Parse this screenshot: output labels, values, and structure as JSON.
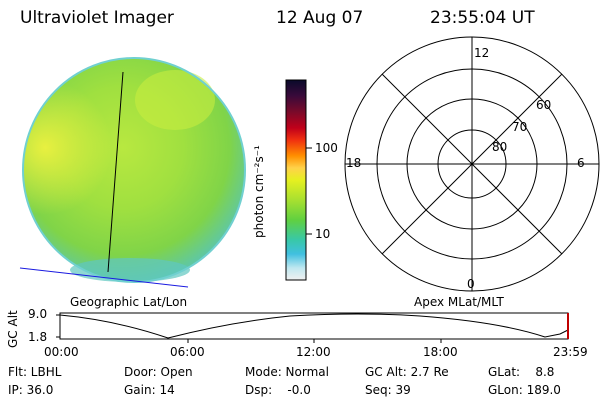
{
  "header": {
    "instrument": "Ultraviolet Imager",
    "date": "12 Aug 07",
    "time": "23:55:04 UT"
  },
  "panels": {
    "geo_label": "Geographic Lat/Lon",
    "apex_label": "Apex MLat/MLT"
  },
  "colorbar": {
    "unit_label": "photon cm⁻²s⁻¹",
    "ticks": [
      "100",
      "10"
    ],
    "colors": [
      "#0a0a2a",
      "#3a0a3a",
      "#7a0a2a",
      "#c0001a",
      "#f03010",
      "#ff9000",
      "#ffd24a",
      "#e6f020",
      "#a8e030",
      "#60d040",
      "#38c8a8",
      "#40c0e0",
      "#c0e8f0",
      "#f0f0f0"
    ]
  },
  "polar": {
    "mlt_labels": {
      "top": "12",
      "left": "18",
      "right": "6",
      "bottom": "0"
    },
    "lat_labels": [
      "60",
      "70",
      "80"
    ]
  },
  "timeline": {
    "axis_label": "GC Alt",
    "y_ticks": [
      "9.0",
      "1.8"
    ],
    "x_ticks": [
      "00:00",
      "06:00",
      "12:00",
      "18:00",
      "23:59"
    ]
  },
  "status": {
    "flt": "Flt: LBHL",
    "ip": "IP: 36.0",
    "door": "Door: Open",
    "gain": "Gain: 14",
    "mode": "Mode: Normal",
    "dsp": "Dsp:    -0.0",
    "gcalt": "GC Alt: 2.7 Re",
    "seq": "Seq: 39",
    "glat": "GLat:    8.8",
    "glon": "GLon: 189.0"
  }
}
